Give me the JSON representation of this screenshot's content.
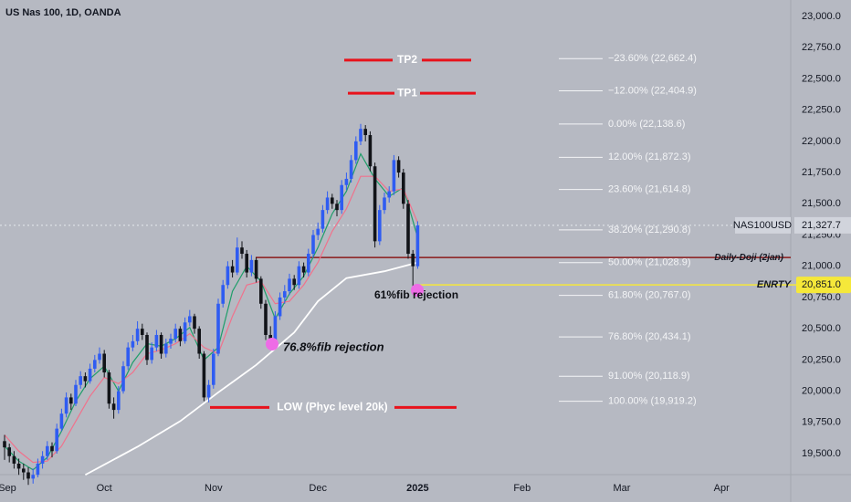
{
  "header": {
    "title": "US Nas 100, 1D, OANDA"
  },
  "chart_data": {
    "type": "candlestick",
    "up_color": "#2f5cf2",
    "down_color": "#111318",
    "candles": [
      [
        19600,
        19650,
        19450,
        19550
      ],
      [
        19550,
        19580,
        19430,
        19480
      ],
      [
        19480,
        19520,
        19380,
        19420
      ],
      [
        19420,
        19460,
        19330,
        19380
      ],
      [
        19380,
        19420,
        19290,
        19350
      ],
      [
        19350,
        19390,
        19250,
        19300
      ],
      [
        19300,
        19380,
        19260,
        19330
      ],
      [
        19330,
        19460,
        19310,
        19420
      ],
      [
        19420,
        19520,
        19380,
        19480
      ],
      [
        19480,
        19600,
        19450,
        19560
      ],
      [
        19560,
        19590,
        19470,
        19520
      ],
      [
        19520,
        19740,
        19500,
        19700
      ],
      [
        19700,
        19860,
        19680,
        19820
      ],
      [
        19820,
        19990,
        19790,
        19950
      ],
      [
        19950,
        19980,
        19850,
        19900
      ],
      [
        19900,
        20090,
        19880,
        20050
      ],
      [
        20050,
        20160,
        20020,
        20120
      ],
      [
        20120,
        20150,
        20030,
        20080
      ],
      [
        20080,
        20220,
        20060,
        20180
      ],
      [
        20180,
        20290,
        20150,
        20250
      ],
      [
        20250,
        20350,
        20220,
        20300
      ],
      [
        20300,
        20330,
        20110,
        20150
      ],
      [
        20150,
        20170,
        19860,
        19900
      ],
      [
        19900,
        19950,
        19780,
        19850
      ],
      [
        19850,
        20040,
        19820,
        20000
      ],
      [
        20000,
        20240,
        19980,
        20200
      ],
      [
        20200,
        20390,
        20170,
        20350
      ],
      [
        20350,
        20450,
        20320,
        20400
      ],
      [
        20400,
        20560,
        20370,
        20500
      ],
      [
        20500,
        20540,
        20410,
        20450
      ],
      [
        20450,
        20470,
        20210,
        20250
      ],
      [
        20250,
        20390,
        20220,
        20350
      ],
      [
        20350,
        20490,
        20320,
        20450
      ],
      [
        20450,
        20470,
        20260,
        20300
      ],
      [
        20300,
        20420,
        20270,
        20380
      ],
      [
        20380,
        20460,
        20340,
        20420
      ],
      [
        20420,
        20540,
        20390,
        20500
      ],
      [
        20500,
        20520,
        20360,
        20400
      ],
      [
        20400,
        20590,
        20380,
        20550
      ],
      [
        20550,
        20650,
        20520,
        20600
      ],
      [
        20600,
        20620,
        20460,
        20500
      ],
      [
        20500,
        20520,
        20260,
        20300
      ],
      [
        20300,
        20320,
        19920,
        19950
      ],
      [
        19950,
        20090,
        19910,
        20050
      ],
      [
        20050,
        20340,
        20020,
        20300
      ],
      [
        20300,
        20740,
        20280,
        20700
      ],
      [
        20700,
        20890,
        20670,
        20850
      ],
      [
        20850,
        21040,
        20820,
        21000
      ],
      [
        21000,
        21050,
        20910,
        20950
      ],
      [
        20950,
        21230,
        20930,
        21150
      ],
      [
        21150,
        21200,
        21060,
        21100
      ],
      [
        21100,
        21130,
        20910,
        20950
      ],
      [
        20950,
        21090,
        20920,
        21050
      ],
      [
        21050,
        21070,
        20870,
        20900
      ],
      [
        20900,
        20920,
        20660,
        20700
      ],
      [
        20700,
        20730,
        20410,
        20450
      ],
      [
        20450,
        20520,
        20350,
        20400
      ],
      [
        20400,
        20640,
        20370,
        20600
      ],
      [
        20600,
        20790,
        20570,
        20750
      ],
      [
        20750,
        20850,
        20700,
        20800
      ],
      [
        20800,
        20940,
        20770,
        20900
      ],
      [
        20900,
        20930,
        20810,
        20850
      ],
      [
        20850,
        21040,
        20820,
        21000
      ],
      [
        21000,
        21030,
        20910,
        20950
      ],
      [
        20950,
        21140,
        20920,
        21100
      ],
      [
        21100,
        21290,
        21070,
        21250
      ],
      [
        21250,
        21350,
        21210,
        21300
      ],
      [
        21300,
        21490,
        21270,
        21450
      ],
      [
        21450,
        21600,
        21420,
        21550
      ],
      [
        21550,
        21580,
        21460,
        21500
      ],
      [
        21500,
        21530,
        21400,
        21450
      ],
      [
        21450,
        21690,
        21420,
        21650
      ],
      [
        21650,
        21750,
        21610,
        21700
      ],
      [
        21700,
        21890,
        21670,
        21850
      ],
      [
        21850,
        22040,
        21820,
        22000
      ],
      [
        22000,
        22140,
        21970,
        22100
      ],
      [
        22100,
        22130,
        22000,
        22050
      ],
      [
        22050,
        22080,
        21760,
        21800
      ],
      [
        21800,
        21830,
        21150,
        21200
      ],
      [
        21200,
        21490,
        21170,
        21450
      ],
      [
        21450,
        21590,
        21420,
        21550
      ],
      [
        21550,
        21640,
        21510,
        21600
      ],
      [
        21600,
        21890,
        21570,
        21850
      ],
      [
        21850,
        21880,
        21710,
        21750
      ],
      [
        21750,
        21780,
        21460,
        21500
      ],
      [
        21500,
        21530,
        21060,
        21100
      ],
      [
        21100,
        21130,
        20840,
        21000
      ],
      [
        21000,
        21360,
        20980,
        21327.7
      ]
    ],
    "series": [
      {
        "color": "#1f9e6a",
        "x": [
          0,
          3,
          6,
          9,
          12,
          15,
          18,
          21,
          24,
          27,
          30,
          33,
          36,
          39,
          42,
          45,
          48,
          51,
          54,
          57,
          60,
          63,
          66,
          69,
          72,
          75,
          78,
          81,
          84,
          87
        ],
        "values": [
          19560,
          19440,
          19370,
          19470,
          19680,
          19920,
          20100,
          20200,
          20000,
          20230,
          20380,
          20360,
          20420,
          20510,
          20250,
          20350,
          20800,
          21000,
          20880,
          20580,
          20780,
          20920,
          21150,
          21420,
          21600,
          21900,
          21700,
          21560,
          21630,
          21230
        ]
      },
      {
        "color": "#f0728c",
        "x": [
          0,
          3,
          6,
          9,
          12,
          15,
          18,
          21,
          24,
          27,
          30,
          33,
          36,
          39,
          42,
          45,
          48,
          51,
          54,
          57,
          60,
          63,
          66,
          69,
          72,
          75,
          78,
          81,
          84,
          87
        ],
        "values": [
          19650,
          19520,
          19430,
          19440,
          19560,
          19760,
          19960,
          20110,
          20060,
          20150,
          20300,
          20330,
          20380,
          20460,
          20350,
          20300,
          20600,
          20850,
          20880,
          20700,
          20720,
          20850,
          21030,
          21280,
          21460,
          21720,
          21720,
          21600,
          21620,
          21350
        ]
      },
      {
        "color": "#ffffff",
        "x": [
          17,
          28,
          37,
          45,
          53,
          61,
          66,
          72,
          80,
          87
        ],
        "values": [
          19330,
          19555,
          19760,
          19990,
          20210,
          20470,
          20720,
          20905,
          20960,
          21030
        ]
      }
    ],
    "ylim": [
      19500,
      23000
    ],
    "yticks": [
      {
        "value": 23000,
        "label": "23,000.0"
      },
      {
        "value": 22750,
        "label": "22,750.0"
      },
      {
        "value": 22500,
        "label": "22,500.0"
      },
      {
        "value": 22250,
        "label": "22,250.0"
      },
      {
        "value": 22000,
        "label": "22,000.0"
      },
      {
        "value": 21750,
        "label": "21,750.0"
      },
      {
        "value": 21500,
        "label": "21,500.0"
      },
      {
        "value": 21250,
        "label": "21,250.0"
      },
      {
        "value": 21000,
        "label": "21,000.0"
      },
      {
        "value": 20750,
        "label": "20,750.0"
      },
      {
        "value": 20500,
        "label": "20,500.0"
      },
      {
        "value": 20250,
        "label": "20,250.0"
      },
      {
        "value": 20000,
        "label": "20,000.0"
      },
      {
        "value": 19750,
        "label": "19,750.0"
      },
      {
        "value": 19500,
        "label": "19,500.0"
      }
    ],
    "xticks": [
      {
        "value": -1,
        "label": "Sep"
      },
      {
        "value": 21,
        "label": "Oct"
      },
      {
        "value": 44,
        "label": "Nov"
      },
      {
        "value": 66,
        "label": "Dec"
      },
      {
        "value": 87,
        "label": "2025"
      },
      {
        "value": 109,
        "label": "Feb"
      },
      {
        "value": 130,
        "label": "Mar"
      },
      {
        "value": 151,
        "label": "Apr"
      }
    ],
    "fib": [
      {
        "value": 22662.4,
        "label": "−23.60% (22,662.4)"
      },
      {
        "value": 22404.9,
        "label": "−12.00% (22,404.9)"
      },
      {
        "value": 22138.6,
        "label": "0.00% (22,138.6)"
      },
      {
        "value": 21872.3,
        "label": "12.00% (21,872.3)"
      },
      {
        "value": 21614.8,
        "label": "23.60% (21,614.8)"
      },
      {
        "value": 21290.8,
        "label": "38.20% (21,290.8)"
      },
      {
        "value": 21028.9,
        "label": "50.00% (21,028.9)"
      },
      {
        "value": 20767.0,
        "label": "61.80% (20,767.0)"
      },
      {
        "value": 20434.1,
        "label": "76.80% (20,434.1)"
      },
      {
        "value": 20118.9,
        "label": "91.00% (20,118.9)"
      },
      {
        "value": 19919.2,
        "label": "100.00% (19,919.2)"
      }
    ],
    "current": {
      "symbol": "NAS100USD",
      "value": 21327.7,
      "label": "21,327.7"
    },
    "doji": {
      "value": 21070,
      "label": "Daily-Doji (2jan)",
      "color": "#8b1a1a"
    },
    "entry": {
      "value": 20851.0,
      "label": "ENRTY",
      "price_label": "20,851.0",
      "color": "#f5e83a"
    },
    "tp2": {
      "value": 22650,
      "label": "TP2"
    },
    "tp1": {
      "value": 22385,
      "label": "TP1"
    },
    "low": {
      "value": 19870,
      "label": "LOW (Phyc level 20k)"
    },
    "notes": [
      "61%fib rejection",
      "76.8%fib rejection"
    ],
    "line_color": "#e8121b"
  }
}
